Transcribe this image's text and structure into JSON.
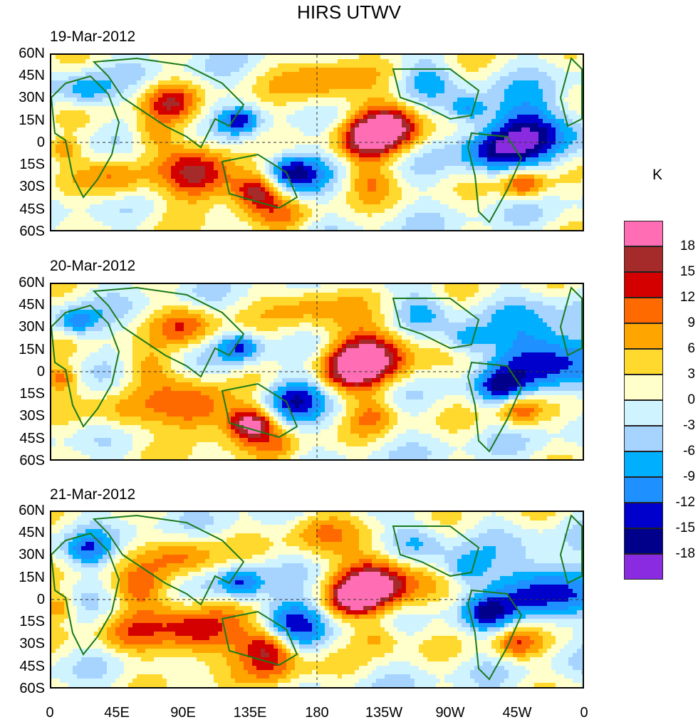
{
  "title": "HIRS UTWV",
  "panels": [
    {
      "date": "19-Mar-2012"
    },
    {
      "date": "20-Mar-2012"
    },
    {
      "date": "21-Mar-2012"
    }
  ],
  "lat_labels": [
    "60N",
    "45N",
    "30N",
    "15N",
    "0",
    "15S",
    "30S",
    "45S",
    "60S"
  ],
  "lon_labels": [
    "0",
    "45E",
    "90E",
    "135E",
    "180",
    "135W",
    "90W",
    "45W",
    "0"
  ],
  "colorbar": {
    "unit": "K",
    "levels": [
      "18",
      "15",
      "12",
      "9",
      "6",
      "3",
      "0",
      "-3",
      "-6",
      "-9",
      "-12",
      "-15",
      "-18"
    ],
    "colors": [
      "#ff6eb4",
      "#a52a2a",
      "#d40000",
      "#ff6a00",
      "#ffa500",
      "#ffd92e",
      "#ffffcc",
      "#d0f4ff",
      "#a6d4ff",
      "#00b0ff",
      "#1e90ff",
      "#0000cd",
      "#00008b",
      "#8a2be2"
    ]
  }
}
